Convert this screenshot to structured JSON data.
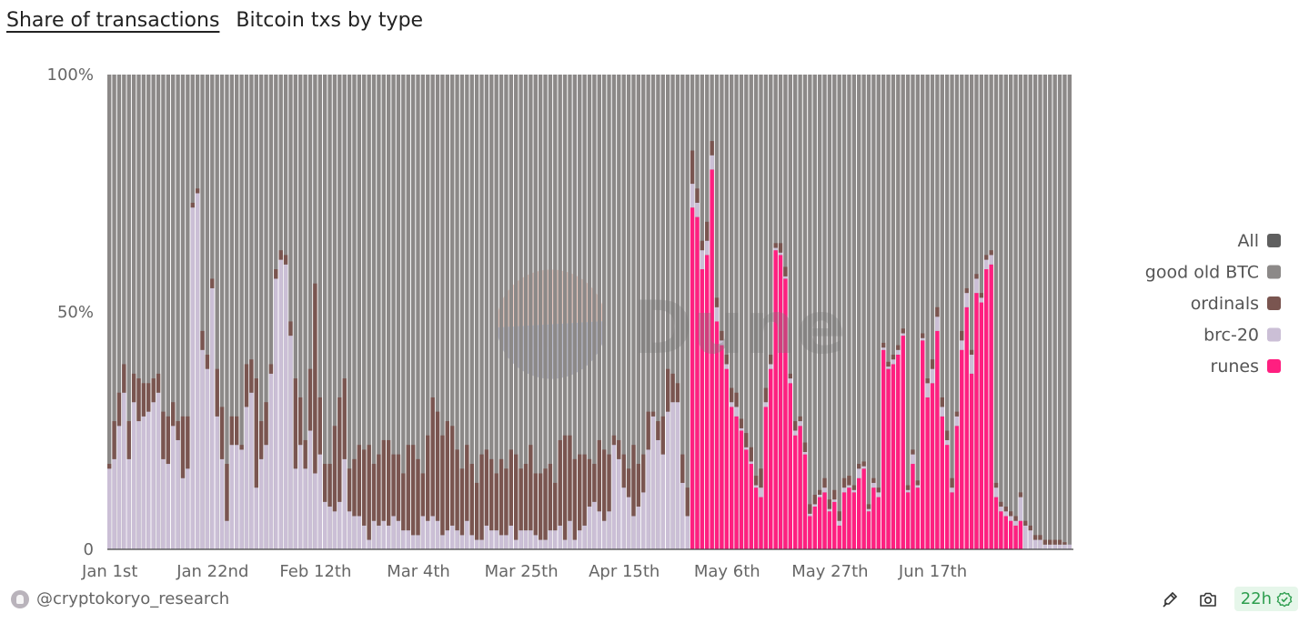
{
  "header": {
    "title": "Share of transactions",
    "subtitle": "Bitcoin txs by type"
  },
  "footer": {
    "author": "@cryptokoryo_research",
    "refresh_label": "22h"
  },
  "colors": {
    "all": "#5f5f5f",
    "good_old_btc": "#8c8988",
    "ordinals": "#7a5550",
    "brc20": "#cbbfd6",
    "runes": "#ff1f80",
    "watermark_top": "#e8a088",
    "watermark_bottom": "#7a80a8",
    "refresh_green": "#2e9e4f"
  },
  "chart_data": {
    "type": "bar",
    "stacked": true,
    "normalized": true,
    "title": "Share of transactions",
    "subtitle": "Bitcoin txs by type",
    "x_tick_labels": [
      "Jan 1st",
      "Jan 22nd",
      "Feb 12th",
      "Mar 4th",
      "Mar 25th",
      "Apr 15th",
      "May 6th",
      "May 27th",
      "Jun 17th"
    ],
    "y_tick_labels": [
      "0",
      "50%",
      "100%"
    ],
    "ylim": [
      0,
      100
    ],
    "legend": [
      "All",
      "good old BTC",
      "ordinals",
      "brc-20",
      "runes"
    ],
    "legend_position": "right",
    "runes_start_index": 119,
    "series": [
      {
        "name": "brc-20",
        "values": [
          17,
          19,
          26,
          33,
          19,
          31,
          27,
          28,
          29,
          31,
          33,
          19,
          18,
          26,
          23,
          15,
          17,
          72,
          75,
          42,
          38,
          55,
          28,
          19,
          6,
          22,
          22,
          21,
          30,
          33,
          13,
          19,
          22,
          37,
          57,
          61,
          60,
          45,
          17,
          22,
          17,
          25,
          16,
          20,
          10,
          9,
          8,
          10,
          19,
          8,
          7,
          7,
          5,
          2,
          6,
          5,
          6,
          5,
          7,
          6,
          4,
          4,
          3,
          3,
          7,
          6,
          7,
          6,
          3,
          4,
          5,
          4,
          3,
          6,
          3,
          2,
          2,
          5,
          4,
          4,
          3,
          3,
          5,
          2,
          4,
          4,
          4,
          3,
          2,
          2,
          4,
          4,
          5,
          2,
          6,
          2,
          4,
          5,
          9,
          10,
          8,
          6,
          8,
          22,
          19,
          13,
          11,
          7,
          9,
          12,
          21,
          28,
          23,
          20,
          29,
          31,
          31,
          14,
          7,
          5,
          3,
          4,
          3,
          3,
          3,
          1,
          1,
          1,
          2,
          0.5,
          0.5,
          0.5,
          0.5,
          2,
          1,
          1,
          0.5,
          0.5,
          0.5,
          1,
          1,
          1,
          0.5,
          0.5,
          0.5,
          0.5,
          1,
          0.5,
          0.5,
          1,
          1,
          0.5,
          0.5,
          2,
          0.5,
          0.5,
          1,
          1,
          0.5,
          0.5,
          1,
          1,
          0.5,
          0.5,
          2,
          0.5,
          0.5,
          3,
          3,
          3,
          2,
          1,
          1,
          2,
          2,
          3,
          4,
          3,
          1,
          2,
          2,
          2,
          1,
          1,
          1,
          1,
          5,
          5,
          4,
          2,
          2,
          1,
          1,
          1,
          1,
          1,
          1
        ]
      },
      {
        "name": "ordinals",
        "values": [
          1,
          8,
          7,
          6,
          8,
          6,
          9,
          7,
          6,
          5,
          4,
          10,
          10,
          5,
          4,
          13,
          11,
          1,
          1,
          4,
          3,
          2,
          10,
          11,
          12,
          6,
          6,
          1,
          9,
          7,
          23,
          8,
          9,
          2,
          2,
          2,
          2,
          3,
          19,
          10,
          6,
          13,
          40,
          12,
          8,
          9,
          18,
          22,
          17,
          9,
          12,
          15,
          16,
          20,
          12,
          15,
          17,
          18,
          13,
          14,
          12,
          18,
          19,
          16,
          9,
          18,
          25,
          23,
          21,
          23,
          21,
          17,
          14,
          16,
          15,
          12,
          18,
          16,
          15,
          12,
          16,
          14,
          16,
          18,
          13,
          14,
          18,
          13,
          14,
          15,
          14,
          10,
          18,
          22,
          18,
          17,
          16,
          15,
          10,
          8,
          15,
          15,
          12,
          2,
          4,
          7,
          6,
          15,
          9,
          8,
          8,
          1,
          4,
          8,
          9,
          6,
          4,
          6,
          6,
          7,
          3,
          2,
          4,
          3,
          2,
          2,
          2,
          3,
          3,
          2,
          3,
          3,
          2,
          4,
          3,
          2,
          1,
          2,
          2,
          1,
          2,
          1,
          2,
          2,
          2,
          1,
          2,
          2,
          2,
          2,
          2,
          2,
          1,
          1,
          1,
          1,
          1,
          1,
          1,
          1,
          1,
          1,
          1,
          1,
          1,
          1,
          1,
          1,
          2,
          2,
          2,
          2,
          2,
          1,
          2,
          1,
          1,
          1,
          1,
          1,
          1,
          1,
          1,
          1,
          1,
          1,
          1,
          1,
          1,
          1,
          1,
          1,
          1,
          1,
          1,
          0.5
        ]
      },
      {
        "name": "runes",
        "values": [
          0,
          0,
          0,
          0,
          0,
          0,
          0,
          0,
          0,
          0,
          0,
          0,
          0,
          0,
          0,
          0,
          0,
          0,
          0,
          0,
          0,
          0,
          0,
          0,
          0,
          0,
          0,
          0,
          0,
          0,
          0,
          0,
          0,
          0,
          0,
          0,
          0,
          0,
          0,
          0,
          0,
          0,
          0,
          0,
          0,
          0,
          0,
          0,
          0,
          0,
          0,
          0,
          0,
          0,
          0,
          0,
          0,
          0,
          0,
          0,
          0,
          0,
          0,
          0,
          0,
          0,
          0,
          0,
          0,
          0,
          0,
          0,
          0,
          0,
          0,
          0,
          0,
          0,
          0,
          0,
          0,
          0,
          0,
          0,
          0,
          0,
          0,
          0,
          0,
          0,
          0,
          0,
          0,
          0,
          0,
          0,
          0,
          0,
          0,
          0,
          0,
          0,
          0,
          0,
          0,
          0,
          0,
          0,
          0,
          0,
          0,
          0,
          0,
          0,
          0,
          0,
          0,
          0,
          0,
          72,
          70,
          59,
          62,
          80,
          48,
          43,
          38,
          30,
          28,
          25,
          21,
          18,
          13,
          11,
          30,
          38,
          63,
          62,
          57,
          35,
          24,
          26,
          20,
          7,
          9,
          11,
          12,
          8,
          10,
          5,
          12,
          13,
          12,
          15,
          17,
          8,
          13,
          11,
          42,
          38,
          39,
          41,
          45,
          12,
          18,
          13,
          44,
          32,
          35,
          46,
          28,
          22,
          12,
          26,
          42,
          51,
          37,
          54,
          52,
          59,
          60,
          11,
          8,
          7,
          6,
          5,
          6
        ]
      }
    ]
  }
}
